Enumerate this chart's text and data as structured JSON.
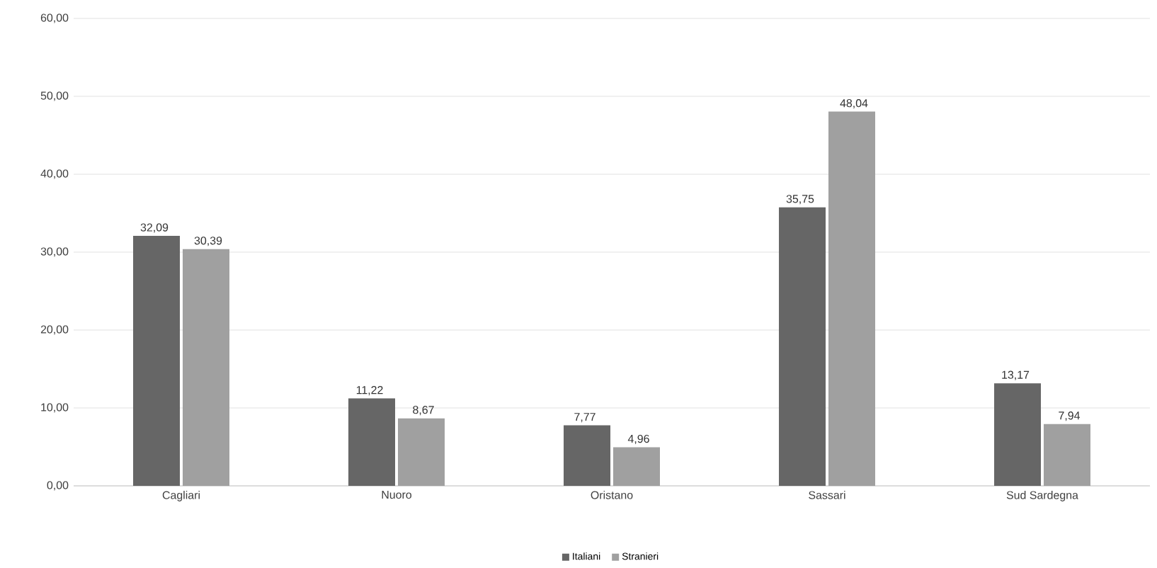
{
  "chart_data": {
    "type": "bar",
    "categories": [
      "Cagliari",
      "Nuoro",
      "Oristano",
      "Sassari",
      "Sud Sardegna"
    ],
    "series": [
      {
        "name": "Italiani",
        "color": "#666666",
        "values": [
          32.09,
          11.22,
          7.77,
          35.75,
          13.17
        ],
        "value_labels": [
          "32,09",
          "11,22",
          "7,77",
          "35,75",
          "13,17"
        ]
      },
      {
        "name": "Stranieri",
        "color": "#a0a0a0",
        "values": [
          30.39,
          8.67,
          4.96,
          48.04,
          7.94
        ],
        "value_labels": [
          "30,39",
          "8,67",
          "4,96",
          "48,04",
          "7,94"
        ]
      }
    ],
    "ylim": [
      0,
      60
    ],
    "yticks": [
      {
        "value": 0,
        "label": "0,00"
      },
      {
        "value": 10,
        "label": "10,00"
      },
      {
        "value": 20,
        "label": "20,00"
      },
      {
        "value": 30,
        "label": "30,00"
      },
      {
        "value": 40,
        "label": "40,00"
      },
      {
        "value": 50,
        "label": "50,00"
      },
      {
        "value": 60,
        "label": "60,00"
      }
    ],
    "grid": "y",
    "legend": "bottom"
  }
}
